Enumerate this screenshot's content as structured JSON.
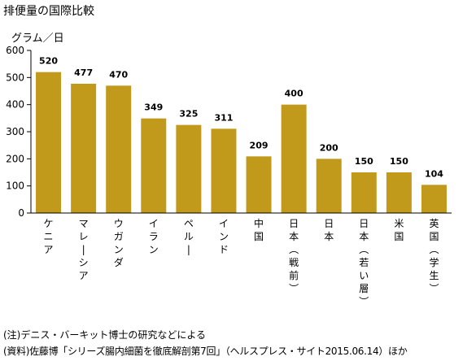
{
  "chart_data": {
    "type": "bar",
    "title": "排便量の国際比較",
    "ylabel": "グラム／日",
    "xlabel": "",
    "ylim": [
      0,
      600
    ],
    "yticks": [
      0,
      100,
      200,
      300,
      400,
      500,
      600
    ],
    "grid": false,
    "categories": [
      "ケニア",
      "マレーシア",
      "ウガンダ",
      "イラン",
      "ペルー",
      "インド",
      "中国",
      "日本（戦前）",
      "日本",
      "日本（若い層）",
      "米国",
      "英国（学生）"
    ],
    "values": [
      520,
      477,
      470,
      349,
      325,
      311,
      209,
      400,
      200,
      150,
      150,
      104
    ],
    "bar_color": "#C19A1B"
  },
  "notes": [
    "(注)デニス・バーキット博士の研究などによる",
    "(資料)佐藤博「シリーズ腸内細菌を徹底解剖第7回」（ヘルスプレス・サイト2015.06.14）ほか"
  ]
}
